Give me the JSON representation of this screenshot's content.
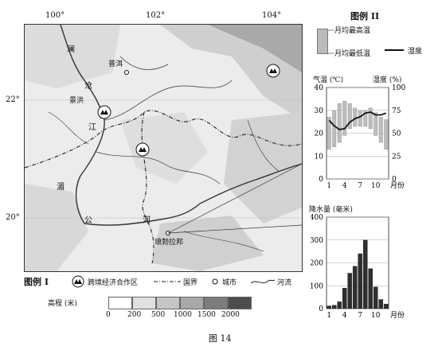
{
  "map": {
    "lon_labels": [
      "100°",
      "102°",
      "104°"
    ],
    "lat_labels": [
      "22°",
      "20°"
    ],
    "river_chars_lancang": [
      "澜",
      "沧",
      "江"
    ],
    "river_chars_mekong": [
      "湄",
      "公",
      "河"
    ],
    "cities": [
      "普洱",
      "景洪",
      "琅勃拉邦"
    ],
    "zone_icons": [
      "跨境经济合作区",
      "跨境经济合作区",
      "跨境经济合作区"
    ]
  },
  "legend1": {
    "title": "图例 I",
    "items": [
      "跨境经济合作区",
      "国界",
      "城市",
      "河流"
    ],
    "elevation_label": "高程 (米)",
    "elevation_ticks": [
      "0",
      "200",
      "500",
      "1000",
      "1500",
      "2000"
    ],
    "elevation_colors": [
      "#ffffff",
      "#e0e0e0",
      "#c6c6c6",
      "#a8a8a8",
      "#7d7d7d",
      "#4d4d4d"
    ]
  },
  "legend2": {
    "title": "图例 II",
    "max_label": "月均最高温",
    "min_label": "月均最低温",
    "humidity_label": "湿度"
  },
  "temp_chart": {
    "left_axis_label": "气温 (℃)",
    "right_axis_label": "湿度 (%)",
    "left_ticks": [
      "40",
      "30",
      "20",
      "10",
      "0"
    ],
    "right_ticks": [
      "100",
      "75",
      "50",
      "25",
      "0"
    ],
    "x_ticks": [
      "1",
      "4",
      "7",
      "10"
    ],
    "x_unit": "月份"
  },
  "precip_chart": {
    "axis_label": "降水量 (毫米)",
    "y_ticks": [
      "400",
      "300",
      "200",
      "100",
      "0"
    ],
    "x_ticks": [
      "1",
      "4",
      "7",
      "10"
    ],
    "x_unit": "月份"
  },
  "caption": "图 14",
  "chart_data": [
    {
      "type": "bar",
      "title": "",
      "xlabel": "月份",
      "ylabel": "气温 (℃)",
      "ylim": [
        0,
        40
      ],
      "y2label": "湿度 (%)",
      "y2lim": [
        0,
        100
      ],
      "categories": [
        "1",
        "2",
        "3",
        "4",
        "5",
        "6",
        "7",
        "8",
        "9",
        "10",
        "11",
        "12"
      ],
      "series": [
        {
          "name": "月均最高温",
          "values": [
            27,
            30,
            33,
            34,
            33,
            31,
            30,
            30,
            31,
            29,
            27,
            26
          ]
        },
        {
          "name": "月均最低温",
          "values": [
            13,
            14,
            16,
            19,
            22,
            23,
            23,
            23,
            22,
            19,
            16,
            13
          ]
        },
        {
          "name": "湿度",
          "values": [
            64,
            58,
            54,
            55,
            62,
            66,
            68,
            72,
            73,
            70,
            70,
            72
          ]
        }
      ]
    },
    {
      "type": "bar",
      "title": "",
      "xlabel": "月份",
      "ylabel": "降水量 (毫米)",
      "ylim": [
        0,
        400
      ],
      "categories": [
        "1",
        "2",
        "3",
        "4",
        "5",
        "6",
        "7",
        "8",
        "9",
        "10",
        "11",
        "12"
      ],
      "values": [
        12,
        15,
        30,
        90,
        155,
        185,
        240,
        300,
        175,
        95,
        40,
        20
      ]
    }
  ]
}
